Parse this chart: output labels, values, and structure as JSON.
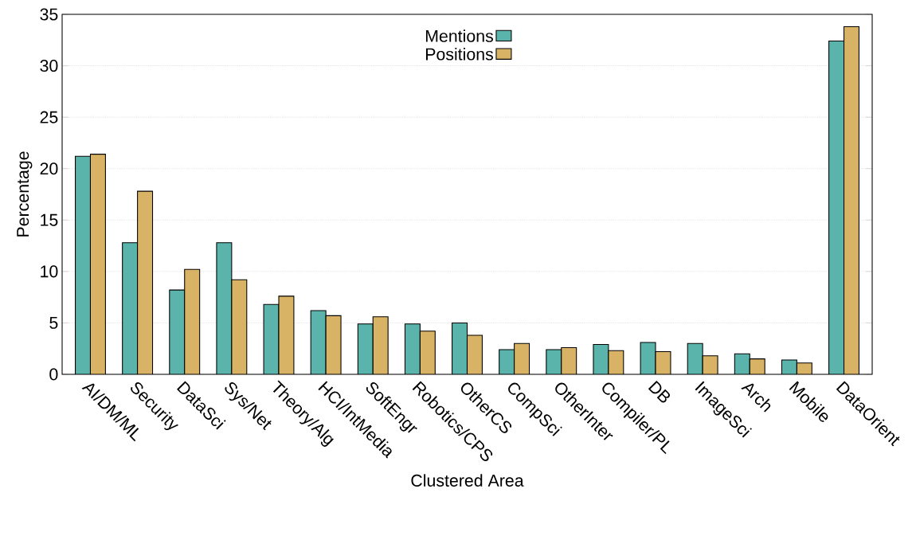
{
  "chart_data": {
    "type": "bar",
    "xlabel": "Clustered Area",
    "ylabel": "Percentage",
    "categories": [
      "AI/DM/ML",
      "Security",
      "DataSci",
      "Sys/Net",
      "Theory/Alg",
      "HCI/IntMedia",
      "SoftEngr",
      "Robotics/CPS",
      "OtherCS",
      "CompSci",
      "OtherInter",
      "Compiler/PL",
      "DB",
      "ImageSci",
      "Arch",
      "Mobile",
      "DataOrient"
    ],
    "series": [
      {
        "name": "Mentions",
        "color": "#5ab4ac",
        "values": [
          21.2,
          12.8,
          8.2,
          12.8,
          6.8,
          6.2,
          4.9,
          4.9,
          5.0,
          2.4,
          2.4,
          2.9,
          3.1,
          3.0,
          2.0,
          1.4,
          32.4
        ]
      },
      {
        "name": "Positions",
        "color": "#d8b365",
        "values": [
          21.4,
          17.8,
          10.2,
          9.2,
          7.6,
          5.7,
          5.6,
          4.2,
          3.8,
          3.0,
          2.6,
          2.3,
          2.2,
          1.8,
          1.5,
          1.1,
          33.8
        ]
      }
    ],
    "ylim": [
      0,
      35
    ],
    "yticks": [
      0,
      5,
      10,
      15,
      20,
      25,
      30,
      35
    ],
    "grid": "y",
    "legend": "top"
  }
}
